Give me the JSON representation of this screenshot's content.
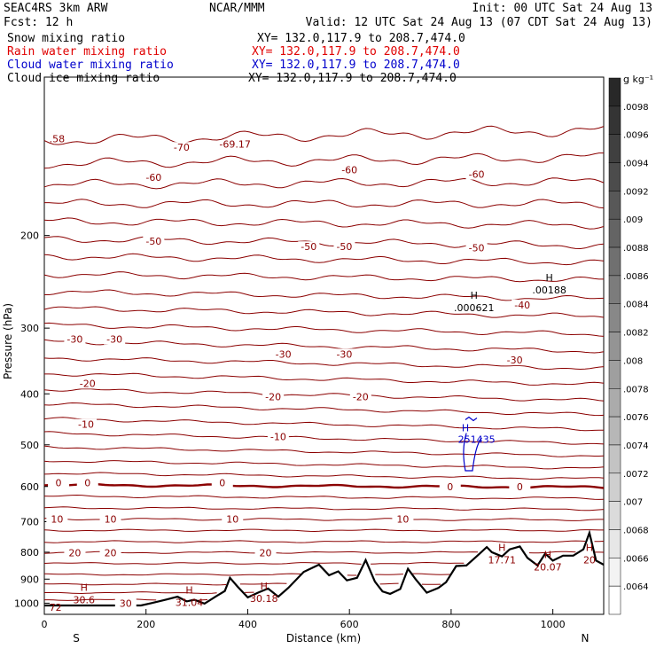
{
  "header": {
    "model": "SEAC4RS  3km ARW",
    "center": "NCAR/MMM",
    "init": "Init: 00 UTC Sat 24 Aug 13",
    "fcst": "Fcst:   12 h",
    "valid": "Valid: 12 UTC Sat 24 Aug 13 (07 CDT Sat 24 Aug 13)"
  },
  "fields": [
    {
      "name": "Snow mixing ratio",
      "xy": "XY= 132.0,117.9 to 208.7,474.0",
      "color": "#000000"
    },
    {
      "name": "Rain water mixing ratio",
      "xy": "XY= 132.0,117.9 to 208.7,474.0",
      "color": "#e00000"
    },
    {
      "name": "Cloud water mixing ratio",
      "xy": "XY= 132.0,117.9 to 208.7,474.0",
      "color": "#0000cc"
    },
    {
      "name": "Cloud ice mixing ratio",
      "xy": "XY= 132.0,117.9 to 208.7,474.0",
      "color": "#000000"
    }
  ],
  "colorbar": {
    "unit": "g kg⁻¹",
    "labels": [
      ".0098",
      ".0096",
      ".0094",
      ".0092",
      ".009",
      ".0088",
      ".0086",
      ".0084",
      ".0082",
      ".008",
      ".0078",
      ".0076",
      ".0074",
      ".0072",
      ".007",
      ".0068",
      ".0066",
      ".0064"
    ]
  },
  "chart_data": {
    "type": "contour cross-section",
    "xlabel": "Distance (km)",
    "ylabel": "Pressure (hPa)",
    "xlim": [
      0,
      1100
    ],
    "ylim": [
      1050,
      100
    ],
    "y_scale": "log",
    "x_ticks": [
      "0",
      "200",
      "400",
      "600",
      "800",
      "1000"
    ],
    "x_tick_values": [
      0,
      200,
      400,
      600,
      800,
      1000
    ],
    "y_ticks": [
      "200",
      "300",
      "400",
      "500",
      "600",
      "700",
      "800",
      "900",
      "1000"
    ],
    "y_tick_values": [
      200,
      300,
      400,
      500,
      600,
      700,
      800,
      900,
      1000
    ],
    "endpoint_labels": {
      "left": "S",
      "right": "N"
    },
    "isotherm_color": "#8b0000",
    "isotherm_labels": [
      {
        "text": "-70",
        "x": 270,
        "p": 136
      },
      {
        "text": "-69.17",
        "x": 375,
        "p": 134
      },
      {
        "text": "-60",
        "x": 215,
        "p": 155
      },
      {
        "text": "-60",
        "x": 600,
        "p": 150
      },
      {
        "text": "-60",
        "x": 850,
        "p": 153
      },
      {
        "text": "-50",
        "x": 215,
        "p": 205
      },
      {
        "text": "-50",
        "x": 520,
        "p": 210
      },
      {
        "text": "-50",
        "x": 590,
        "p": 210
      },
      {
        "text": "-50",
        "x": 850,
        "p": 211
      },
      {
        "text": "-40",
        "x": 940,
        "p": 271
      },
      {
        "text": "-30",
        "x": 60,
        "p": 315
      },
      {
        "text": "-30",
        "x": 138,
        "p": 315
      },
      {
        "text": "-30",
        "x": 470,
        "p": 336
      },
      {
        "text": "-30",
        "x": 590,
        "p": 336
      },
      {
        "text": "-30",
        "x": 925,
        "p": 345
      },
      {
        "text": "-20",
        "x": 85,
        "p": 382
      },
      {
        "text": "-20",
        "x": 450,
        "p": 405
      },
      {
        "text": "-20",
        "x": 622,
        "p": 405
      },
      {
        "text": "-10",
        "x": 82,
        "p": 457
      },
      {
        "text": "-10",
        "x": 460,
        "p": 482
      },
      {
        "text": "0",
        "x": 28,
        "p": 590
      },
      {
        "text": "0",
        "x": 85,
        "p": 590
      },
      {
        "text": "0",
        "x": 350,
        "p": 590
      },
      {
        "text": "0",
        "x": 798,
        "p": 600
      },
      {
        "text": "0",
        "x": 935,
        "p": 600
      },
      {
        "text": "10",
        "x": 25,
        "p": 692
      },
      {
        "text": "10",
        "x": 130,
        "p": 692
      },
      {
        "text": "10",
        "x": 370,
        "p": 692
      },
      {
        "text": "10",
        "x": 705,
        "p": 692
      },
      {
        "text": "20",
        "x": 60,
        "p": 802
      },
      {
        "text": "20",
        "x": 130,
        "p": 802
      },
      {
        "text": "20",
        "x": 435,
        "p": 802
      },
      {
        "text": "30",
        "x": 160,
        "p": 1000
      }
    ],
    "highs": [
      {
        "text": "30.6",
        "x": 78,
        "p": 970
      },
      {
        "text": "31.04",
        "x": 285,
        "p": 982
      },
      {
        "text": "30.18",
        "x": 432,
        "p": 965
      },
      {
        "text": "17.71",
        "x": 900,
        "p": 815
      },
      {
        "text": "20.07",
        "x": 990,
        "p": 840
      },
      {
        "text": "20",
        "x": 1072,
        "p": 815
      },
      {
        "text": ".000621",
        "x": 845,
        "p": 270
      },
      {
        "text": ".00188",
        "x": 993,
        "p": 250
      }
    ],
    "corner_labels": [
      {
        "text": ".58",
        "x": 25,
        "p": 131
      },
      {
        "text": "72",
        "x": 22,
        "p": 1018
      }
    ],
    "cloud_water_max": "251435",
    "cloud_water_x": 850,
    "cloud_water_p": 490,
    "terrain": {
      "x": [
        0,
        40,
        80,
        120,
        160,
        190,
        210,
        240,
        262,
        280,
        295,
        315,
        338,
        355,
        365,
        380,
        400,
        420,
        440,
        460,
        480,
        510,
        540,
        560,
        578,
        595,
        615,
        632,
        650,
        665,
        680,
        700,
        715,
        730,
        752,
        775,
        790,
        810,
        830,
        850,
        870,
        880,
        900,
        915,
        935,
        950,
        970,
        985,
        1000,
        1020,
        1040,
        1060,
        1072,
        1085,
        1100
      ],
      "p": [
        1010,
        1010,
        1010,
        1010,
        1010,
        1010,
        1000,
        984,
        972,
        992,
        985,
        1002,
        970,
        948,
        895,
        930,
        975,
        955,
        938,
        972,
        935,
        872,
        845,
        885,
        870,
        905,
        895,
        828,
        910,
        950,
        960,
        940,
        860,
        900,
        955,
        935,
        912,
        850,
        848,
        815,
        782,
        800,
        815,
        790,
        780,
        820,
        848,
        805,
        830,
        812,
        812,
        790,
        735,
        830,
        845
      ]
    },
    "colorbar_range": [
      0.0063,
      0.0099
    ]
  }
}
